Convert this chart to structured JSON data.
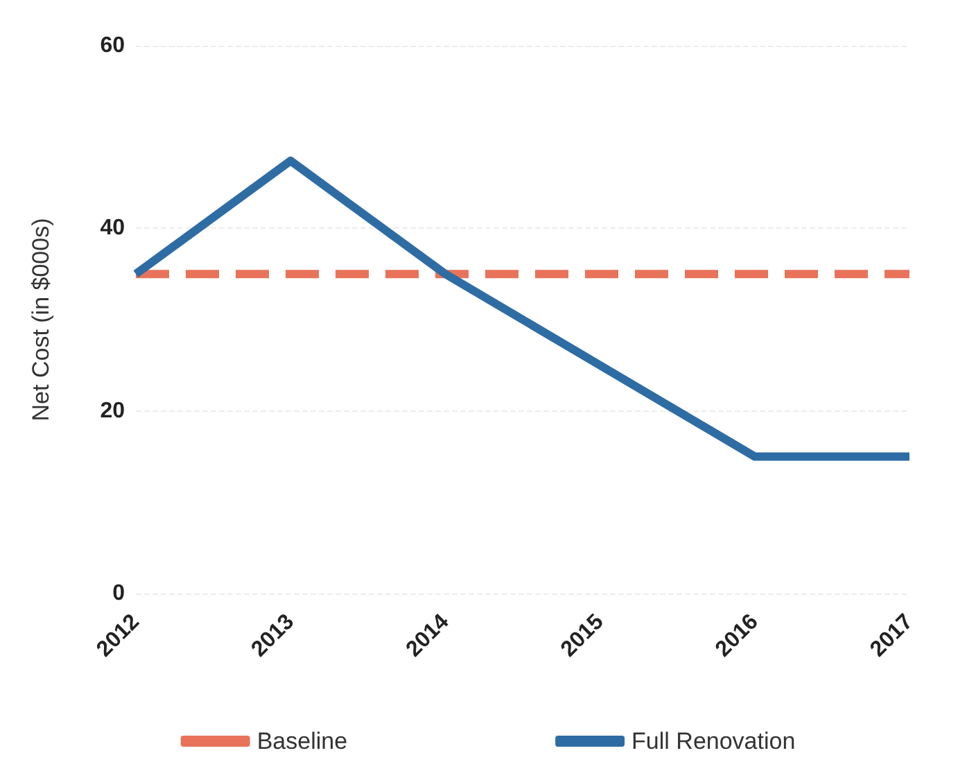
{
  "chart_data": {
    "type": "line",
    "ylabel": "Net Cost (in $000s)",
    "categories": [
      "2012",
      "2013",
      "2014",
      "2015",
      "2016",
      "2017"
    ],
    "series": [
      {
        "name": "Baseline",
        "color": "#e8735a",
        "line_style": "dashed",
        "values": [
          35,
          35,
          35,
          35,
          35,
          35
        ]
      },
      {
        "name": "Full Renovation",
        "color": "#2e6ca4",
        "line_style": "solid",
        "values": [
          35,
          47.4,
          35,
          25,
          15,
          15
        ]
      }
    ],
    "ylim": [
      0,
      60
    ],
    "yticks": [
      0,
      20,
      40,
      60
    ],
    "grid": "y",
    "legend": "bottom",
    "marker": "none"
  }
}
